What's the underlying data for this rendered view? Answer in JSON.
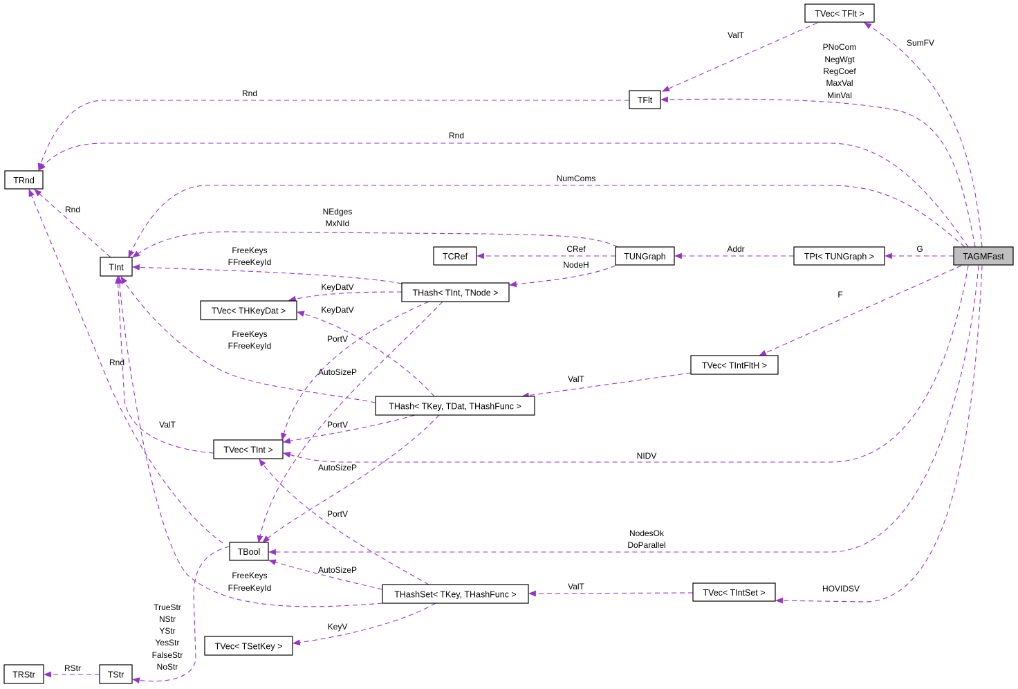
{
  "diagram": {
    "root": "TAGMFast",
    "edge_color": "#9a32cd",
    "root_fill": "#bfbfbf",
    "nodes": [
      "TVec< TFlt >",
      "TFlt",
      "TRnd",
      "TInt",
      "TCRef",
      "TUNGraph",
      "TPt< TUNGraph >",
      "TAGMFast",
      "THash< TInt, TNode >",
      "TVec< THKeyDat >",
      "TVec< TIntFltH >",
      "THash< TKey, TDat, THashFunc >",
      "TVec< TInt >",
      "TBool",
      "THashSet< TKey, THashFunc >",
      "TVec< TIntSet >",
      "TVec< TSetKey >",
      "TRStr",
      "TStr"
    ],
    "edges": [
      {
        "from": "TAGMFast",
        "to": "TVec< TFlt >",
        "labels": [
          "SumFV"
        ]
      },
      {
        "from": "TVec< TFlt >",
        "to": "TFlt",
        "labels": [
          "ValT"
        ]
      },
      {
        "from": "TAGMFast",
        "to": "TFlt",
        "labels": [
          "PNoCom",
          "NegWgt",
          "RegCoef",
          "MaxVal",
          "MinVal"
        ]
      },
      {
        "from": "TFlt",
        "to": "TRnd",
        "labels": [
          "Rnd"
        ]
      },
      {
        "from": "TAGMFast",
        "to": "TRnd",
        "labels": [
          "Rnd"
        ]
      },
      {
        "from": "TAGMFast",
        "to": "TInt",
        "labels": [
          "NumComs"
        ]
      },
      {
        "from": "TInt",
        "to": "TRnd",
        "labels": [
          "Rnd"
        ]
      },
      {
        "from": "TUNGraph",
        "to": "TInt",
        "labels": [
          "NEdges",
          "MxNId"
        ]
      },
      {
        "from": "TUNGraph",
        "to": "TCRef",
        "labels": [
          "CRef"
        ]
      },
      {
        "from": "TPt< TUNGraph >",
        "to": "TUNGraph",
        "labels": [
          "Addr"
        ]
      },
      {
        "from": "TAGMFast",
        "to": "TPt< TUNGraph >",
        "labels": [
          "G"
        ]
      },
      {
        "from": "TUNGraph",
        "to": "THash< TInt, TNode >",
        "labels": [
          "NodeH"
        ]
      },
      {
        "from": "THash< TInt, TNode >",
        "to": "TInt",
        "labels": [
          "FreeKeys",
          "FFreeKeyId"
        ]
      },
      {
        "from": "THash< TInt, TNode >",
        "to": "TVec< THKeyDat >",
        "labels": [
          "KeyDatV"
        ]
      },
      {
        "from": "THash< TInt, TNode >",
        "to": "TVec< TInt >",
        "labels": [
          "PortV"
        ]
      },
      {
        "from": "THash< TInt, TNode >",
        "to": "TBool",
        "labels": [
          "AutoSizeP"
        ]
      },
      {
        "from": "TAGMFast",
        "to": "TVec< TIntFltH >",
        "labels": [
          "F"
        ]
      },
      {
        "from": "TVec< TIntFltH >",
        "to": "THash< TKey, TDat, THashFunc >",
        "labels": [
          "ValT"
        ]
      },
      {
        "from": "THash< TKey, TDat, THashFunc >",
        "to": "TVec< THKeyDat >",
        "labels": [
          "KeyDatV"
        ]
      },
      {
        "from": "THash< TKey, TDat, THashFunc >",
        "to": "TInt",
        "labels": [
          "FreeKeys",
          "FFreeKeyId"
        ]
      },
      {
        "from": "THash< TKey, TDat, THashFunc >",
        "to": "TVec< TInt >",
        "labels": [
          "PortV"
        ]
      },
      {
        "from": "THash< TKey, TDat, THashFunc >",
        "to": "TBool",
        "labels": [
          "AutoSizeP"
        ]
      },
      {
        "from": "TAGMFast",
        "to": "TVec< TInt >",
        "labels": [
          "NIDV"
        ]
      },
      {
        "from": "TVec< TInt >",
        "to": "TInt",
        "labels": [
          "ValT"
        ]
      },
      {
        "from": "TBool",
        "to": "TRnd",
        "labels": [
          "Rnd"
        ]
      },
      {
        "from": "TAGMFast",
        "to": "TBool",
        "labels": [
          "NodesOk",
          "DoParallel"
        ]
      },
      {
        "from": "THashSet< TKey, THashFunc >",
        "to": "TVec< TInt >",
        "labels": [
          "PortV"
        ]
      },
      {
        "from": "THashSet< TKey, THashFunc >",
        "to": "TBool",
        "labels": [
          "AutoSizeP"
        ]
      },
      {
        "from": "THashSet< TKey, THashFunc >",
        "to": "TInt",
        "labels": [
          "FreeKeys",
          "FFreeKeyId"
        ]
      },
      {
        "from": "TVec< TIntSet >",
        "to": "THashSet< TKey, THashFunc >",
        "labels": [
          "ValT"
        ]
      },
      {
        "from": "TAGMFast",
        "to": "TVec< TIntSet >",
        "labels": [
          "HOVIDSV"
        ]
      },
      {
        "from": "THashSet< TKey, THashFunc >",
        "to": "TVec< TSetKey >",
        "labels": [
          "KeyV"
        ]
      },
      {
        "from": "TBool",
        "to": "TStr",
        "labels": [
          "TrueStr",
          "NStr",
          "YStr",
          "YesStr",
          "FalseStr",
          "NoStr"
        ]
      },
      {
        "from": "TStr",
        "to": "TRStr",
        "labels": [
          "RStr"
        ]
      }
    ]
  }
}
